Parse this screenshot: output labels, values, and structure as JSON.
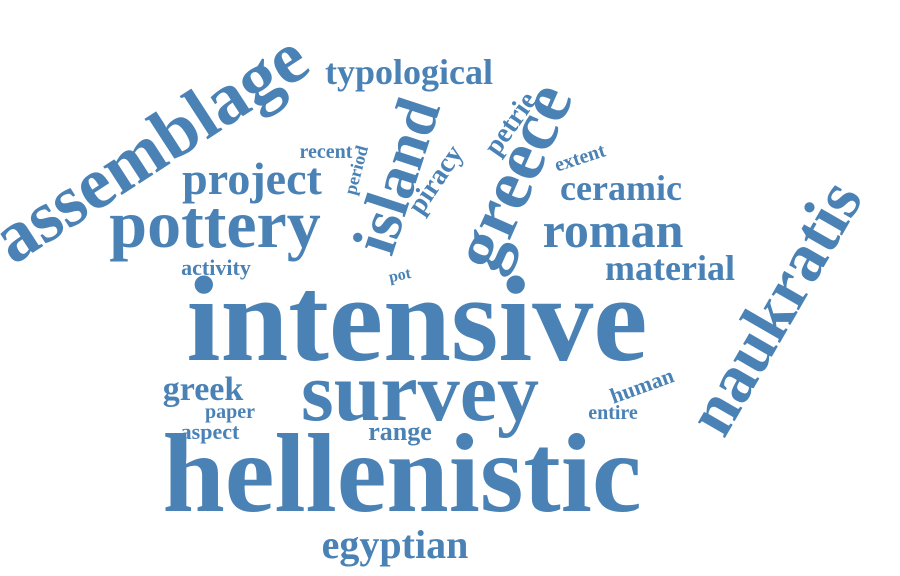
{
  "words": {
    "intensive": "intensive",
    "hellenistic": "hellenistic",
    "survey": "survey",
    "assemblage": "assemblage",
    "pottery": "pottery",
    "naukratis": "naukratis",
    "greece": "greece",
    "island": "island",
    "roman": "roman",
    "project": "project",
    "egyptian": "egyptian",
    "typological": "typological",
    "material": "material",
    "ceramic": "ceramic",
    "greek": "greek",
    "range": "range",
    "piracy": "piracy",
    "petrie": "petrie",
    "activity": "activity",
    "aspect": "aspect",
    "human": "human",
    "extent": "extent",
    "entire": "entire",
    "paper": "paper",
    "recent": "recent",
    "period": "period",
    "pot": "pot"
  },
  "colors": {
    "word": "#4a82b5",
    "background": "#ffffff"
  }
}
